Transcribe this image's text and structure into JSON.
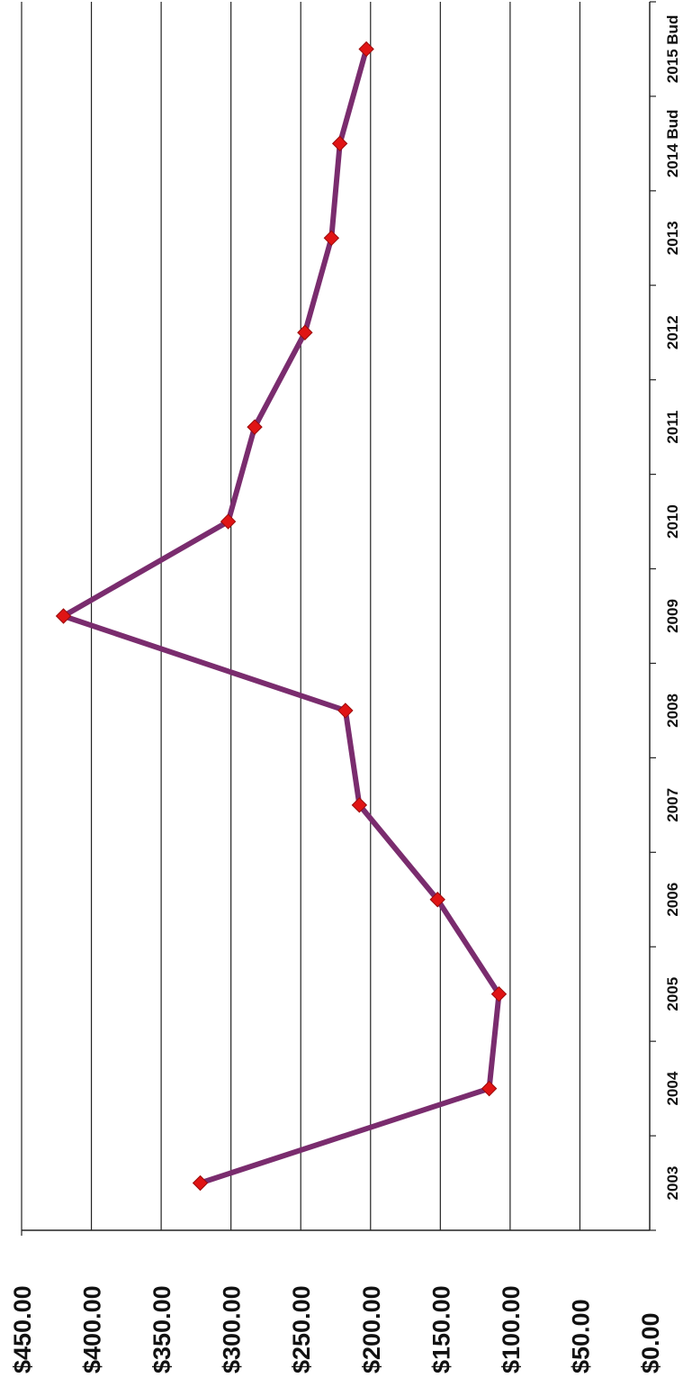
{
  "chart_data": {
    "type": "line",
    "orientation": "rotated-90",
    "categories": [
      "2003",
      "2004",
      "2005",
      "2006",
      "2007",
      "2008",
      "2009",
      "2010",
      "2011",
      "2012",
      "2013",
      "2014 Bud",
      "2015 Bud"
    ],
    "series": [
      {
        "values": [
          322,
          115,
          108,
          152,
          208,
          218,
          420,
          302,
          283,
          247,
          228,
          222,
          203
        ],
        "color": "#7a2c6e",
        "marker": "diamond",
        "marker_color": "#e01414"
      }
    ],
    "ylim": [
      0,
      450
    ],
    "y_ticks": [
      "$0.00",
      "$50.00",
      "$100.00",
      "$150.00",
      "$200.00",
      "$250.00",
      "$300.00",
      "$350.00",
      "$400.00",
      "$450.00"
    ],
    "grid": true,
    "legend": "none"
  }
}
